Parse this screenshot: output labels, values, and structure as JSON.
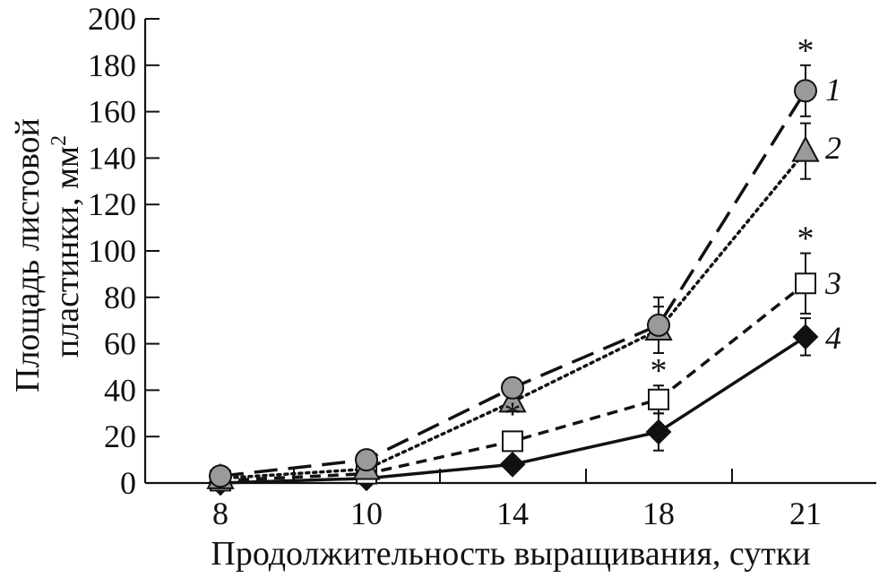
{
  "chart_data": {
    "type": "line",
    "xlabel": "Продолжительность выращивания, сутки",
    "ylabel_line1": "Площадь листовой",
    "ylabel_line2": "пластинки, мм",
    "ylabel_superscript": "2",
    "categories": [
      "8",
      "10",
      "14",
      "18",
      "21"
    ],
    "ylim": [
      0,
      200
    ],
    "yticks": [
      0,
      20,
      40,
      60,
      80,
      100,
      120,
      140,
      160,
      180,
      200
    ],
    "grid": false,
    "series": [
      {
        "name": "1",
        "values": [
          3,
          10,
          41,
          68,
          169
        ],
        "errors": [
          0,
          0,
          0,
          12,
          11
        ],
        "marker": "circle",
        "line": "long-dash",
        "marker_fill": "#9a9a9a",
        "stars": [
          false,
          false,
          false,
          false,
          true
        ]
      },
      {
        "name": "2",
        "values": [
          2,
          6,
          35,
          66,
          143
        ],
        "errors": [
          0,
          0,
          0,
          10,
          12
        ],
        "marker": "triangle",
        "line": "dotted",
        "marker_fill": "#9a9a9a",
        "stars": [
          false,
          false,
          false,
          false,
          false
        ]
      },
      {
        "name": "3",
        "values": [
          1,
          4,
          18,
          36,
          86
        ],
        "errors": [
          0,
          0,
          0,
          6,
          13
        ],
        "marker": "square",
        "line": "short-dash",
        "marker_fill": "#ffffff",
        "stars": [
          false,
          false,
          true,
          true,
          true
        ]
      },
      {
        "name": "4",
        "values": [
          0,
          2,
          8,
          22,
          63
        ],
        "errors": [
          0,
          0,
          0,
          8,
          8
        ],
        "marker": "diamond",
        "line": "solid",
        "marker_fill": "#111111",
        "stars": [
          false,
          false,
          false,
          false,
          false
        ]
      }
    ],
    "significance_symbol": "*"
  }
}
